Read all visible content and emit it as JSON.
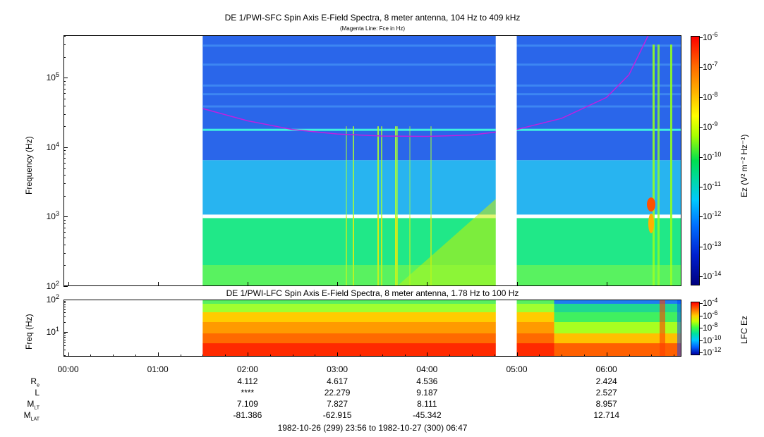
{
  "top_panel": {
    "title": "DE 1/PWI-SFC  Spin Axis E-Field Spectra, 8 meter antenna, 104 Hz to 409 kHz",
    "subtitle": "(Magenta Line: Fce in Hz)",
    "ylabel": "Frequency (Hz)",
    "yticks": [
      {
        "b": "10",
        "e": "2"
      },
      {
        "b": "10",
        "e": "3"
      },
      {
        "b": "10",
        "e": "4"
      },
      {
        "b": "10",
        "e": "5"
      }
    ],
    "colorbar_label": "Ez (V² m⁻² Hz⁻¹)",
    "colorbar_ticks": [
      {
        "b": "10",
        "e": "-6"
      },
      {
        "b": "10",
        "e": "-7"
      },
      {
        "b": "10",
        "e": "-8"
      },
      {
        "b": "10",
        "e": "-9"
      },
      {
        "b": "10",
        "e": "-10"
      },
      {
        "b": "10",
        "e": "-11"
      },
      {
        "b": "10",
        "e": "-12"
      },
      {
        "b": "10",
        "e": "-13"
      },
      {
        "b": "10",
        "e": "-14"
      }
    ]
  },
  "bottom_panel": {
    "title": "DE 1/PWI-LFC  Spin Axis E-Field Spectra, 8 meter antenna, 1.78 Hz to 100 Hz",
    "ylabel": "Freq (Hz)",
    "yticks": [
      {
        "b": "10",
        "e": "2"
      },
      {
        "b": "10",
        "e": "1"
      }
    ],
    "colorbar_label": "LFC Ez",
    "colorbar_ticks": [
      {
        "b": "10",
        "e": "-4"
      },
      {
        "b": "10",
        "e": "-6"
      },
      {
        "b": "10",
        "e": "-8"
      },
      {
        "b": "10",
        "e": "-10"
      },
      {
        "b": "10",
        "e": "-12"
      }
    ]
  },
  "xticks": [
    "00:00",
    "01:00",
    "02:00",
    "03:00",
    "04:00",
    "05:00",
    "06:00"
  ],
  "ephemeris": {
    "rows": [
      {
        "name": "R",
        "sub": "e",
        "values": [
          "4.112",
          "4.617",
          "4.536",
          "",
          "2.424"
        ]
      },
      {
        "name": "L",
        "sub": "",
        "values": [
          "****",
          "22.279",
          "9.187",
          "",
          "2.527"
        ]
      },
      {
        "name": "M",
        "sub": "LT",
        "values": [
          "7.109",
          "7.827",
          "8.111",
          "",
          "8.957"
        ]
      },
      {
        "name": "M",
        "sub": "LAT",
        "values": [
          "-81.386",
          "-62.915",
          "-45.342",
          "",
          "12.714"
        ]
      }
    ],
    "time_range": "1982-10-26 (299) 23:56 to 1982-10-27 (300) 06:47"
  },
  "chart_data": [
    {
      "type": "heatmap",
      "title": "DE 1/PWI-SFC  Spin Axis E-Field Spectra, 8 meter antenna, 104 Hz to 409 kHz",
      "subtitle": "(Magenta Line: Fce in Hz)",
      "xlabel": "",
      "ylabel": "Frequency (Hz)",
      "y_scale": "log",
      "ylim": [
        100,
        409000
      ],
      "xlim": [
        "23:56",
        "06:47"
      ],
      "data_gaps": [
        [
          "23:56",
          "01:30"
        ],
        [
          "04:46",
          "05:00"
        ]
      ],
      "colorbar": {
        "label": "Ez (V^2 m^-2 Hz^-1)",
        "scale": "log",
        "range": [
          1e-14,
          1e-06
        ]
      },
      "overlay_line": {
        "name": "Fce in Hz",
        "color": "#c020e0",
        "x": [
          "01:30",
          "02:00",
          "02:30",
          "03:00",
          "03:30",
          "04:00",
          "04:30",
          "04:46",
          "05:00",
          "05:30",
          "06:00",
          "06:15",
          "06:28"
        ],
        "y": [
          36000,
          24000,
          18000,
          15500,
          14500,
          14300,
          15000,
          16500,
          18000,
          26000,
          52000,
          110000,
          409000
        ]
      }
    },
    {
      "type": "heatmap",
      "title": "DE 1/PWI-LFC  Spin Axis E-Field Spectra, 8 meter antenna, 1.78 Hz to 100 Hz",
      "ylabel": "Freq (Hz)",
      "y_scale": "log",
      "ylim": [
        1.78,
        100
      ],
      "xlim": [
        "23:56",
        "06:47"
      ],
      "data_gaps": [
        [
          "23:56",
          "01:30"
        ],
        [
          "04:46",
          "05:00"
        ]
      ],
      "colorbar": {
        "label": "LFC Ez",
        "scale": "log",
        "range": [
          1e-12,
          0.0001
        ]
      }
    }
  ],
  "colors": {
    "magenta": "#c020e0",
    "background": "#ffffff",
    "frame": "#000000"
  }
}
